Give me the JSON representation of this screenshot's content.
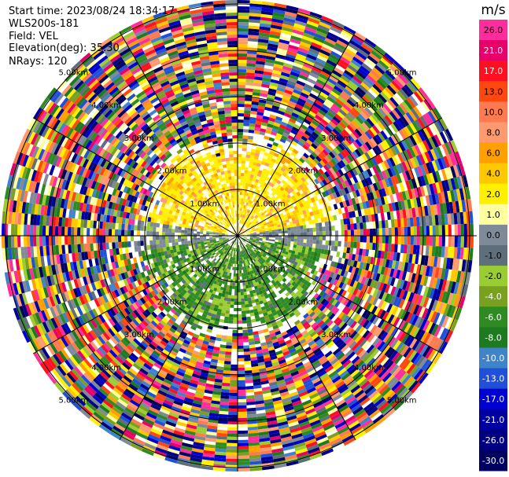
{
  "info": {
    "start_time": "Start time: 2023/08/24 18:34:17",
    "station": "WLS200s-181",
    "field": "Field: VEL",
    "elevation": "Elevation(deg): 35.30",
    "nrays": "NRays: 120"
  },
  "chart_data": {
    "type": "heatmap",
    "projection": "polar",
    "field": "VEL",
    "nrays": 120,
    "colorbar": {
      "unit": "m/s",
      "ticks": [
        "26.0",
        "21.0",
        "17.0",
        "13.0",
        "10.0",
        "8.0",
        "6.0",
        "4.0",
        "2.0",
        "1.0",
        "0.0",
        "-1.0",
        "-2.0",
        "-4.0",
        "-6.0",
        "-8.0",
        "-10.0",
        "-13.0",
        "-17.0",
        "-21.0",
        "-26.0",
        "-30.0"
      ],
      "colors": [
        "#ff2d9b",
        "#e8006a",
        "#ff0f1f",
        "#ff4810",
        "#ff7a50",
        "#ff9a70",
        "#ffa000",
        "#ffc800",
        "#fff000",
        "#ffffa0",
        "#7f8a99",
        "#5e6e7a",
        "#9acd32",
        "#7aa020",
        "#2e8b22",
        "#1e7a1e",
        "#3f83c8",
        "#2050d8",
        "#0000d0",
        "#0000a0",
        "#000080",
        "#000060"
      ]
    },
    "range_rings": [
      {
        "label": "1.00km"
      },
      {
        "label": "2.00km"
      },
      {
        "label": "3.00km"
      },
      {
        "label": "4.00km"
      },
      {
        "label": "5.00km"
      }
    ],
    "spokes_deg": [
      0,
      30,
      60,
      90,
      120,
      150,
      180,
      210,
      240,
      270,
      300,
      330
    ],
    "velocity_pattern": {
      "inner_north": "positive (yellow/orange, 1 to 8 m/s)",
      "inner_south": "negative (green, -1 to -8 m/s)",
      "inner_east_west": "near zero (gray)",
      "outer": "noise (all colors)"
    }
  }
}
